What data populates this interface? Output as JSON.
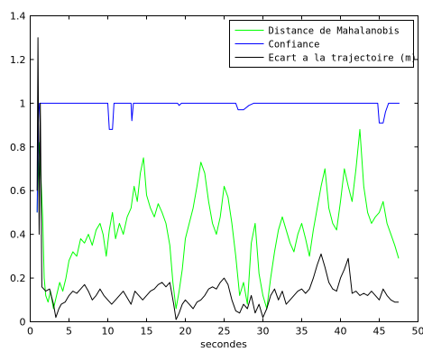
{
  "chart_data": {
    "type": "line",
    "title": "",
    "xlabel": "secondes",
    "ylabel": "",
    "xlim": [
      0,
      50
    ],
    "ylim": [
      0,
      1.4
    ],
    "x_ticks": [
      0,
      5,
      10,
      15,
      20,
      25,
      30,
      35,
      40,
      45,
      50
    ],
    "x_tick_labels": [
      "0",
      "5",
      "10",
      "15",
      "20",
      "25",
      "30",
      "35",
      "40",
      "45",
      "50"
    ],
    "y_ticks": [
      0,
      0.2,
      0.4,
      0.6,
      0.8,
      1,
      1.2,
      1.4
    ],
    "y_tick_labels": [
      "0",
      "0.2",
      "0.4",
      "0.6",
      "0.8",
      "1",
      "1.2",
      "1.4"
    ],
    "grid": false,
    "legend_position": "top-right",
    "series": [
      {
        "name": "Distance de Mahalanobis",
        "color": "#00ff00",
        "points": [
          [
            0.9,
            0.5
          ],
          [
            1.0,
            0.7
          ],
          [
            1.2,
            0.82
          ],
          [
            1.4,
            0.65
          ],
          [
            1.6,
            0.48
          ],
          [
            1.8,
            0.2
          ],
          [
            2.0,
            0.12
          ],
          [
            2.3,
            0.09
          ],
          [
            2.6,
            0.14
          ],
          [
            3.0,
            0.06
          ],
          [
            3.4,
            0.12
          ],
          [
            3.8,
            0.18
          ],
          [
            4.2,
            0.14
          ],
          [
            4.6,
            0.2
          ],
          [
            5.0,
            0.28
          ],
          [
            5.5,
            0.32
          ],
          [
            6.0,
            0.3
          ],
          [
            6.5,
            0.38
          ],
          [
            7.0,
            0.36
          ],
          [
            7.5,
            0.4
          ],
          [
            8.0,
            0.35
          ],
          [
            8.5,
            0.42
          ],
          [
            9.0,
            0.45
          ],
          [
            9.4,
            0.4
          ],
          [
            9.8,
            0.3
          ],
          [
            10.2,
            0.42
          ],
          [
            10.6,
            0.5
          ],
          [
            11.0,
            0.38
          ],
          [
            11.5,
            0.45
          ],
          [
            12.0,
            0.4
          ],
          [
            12.5,
            0.48
          ],
          [
            13.0,
            0.52
          ],
          [
            13.4,
            0.62
          ],
          [
            13.8,
            0.55
          ],
          [
            14.2,
            0.68
          ],
          [
            14.6,
            0.75
          ],
          [
            15.0,
            0.58
          ],
          [
            15.5,
            0.52
          ],
          [
            16.0,
            0.48
          ],
          [
            16.5,
            0.54
          ],
          [
            17.0,
            0.5
          ],
          [
            17.5,
            0.45
          ],
          [
            18.0,
            0.35
          ],
          [
            18.4,
            0.18
          ],
          [
            18.8,
            0.06
          ],
          [
            19.2,
            0.14
          ],
          [
            19.6,
            0.24
          ],
          [
            20.0,
            0.38
          ],
          [
            20.5,
            0.45
          ],
          [
            21.0,
            0.52
          ],
          [
            21.5,
            0.62
          ],
          [
            22.0,
            0.73
          ],
          [
            22.5,
            0.68
          ],
          [
            23.0,
            0.55
          ],
          [
            23.5,
            0.45
          ],
          [
            24.0,
            0.4
          ],
          [
            24.5,
            0.48
          ],
          [
            25.0,
            0.62
          ],
          [
            25.5,
            0.57
          ],
          [
            26.0,
            0.45
          ],
          [
            26.5,
            0.3
          ],
          [
            27.0,
            0.12
          ],
          [
            27.5,
            0.18
          ],
          [
            28.0,
            0.08
          ],
          [
            28.5,
            0.36
          ],
          [
            29.0,
            0.45
          ],
          [
            29.5,
            0.22
          ],
          [
            30.0,
            0.12
          ],
          [
            30.5,
            0.06
          ],
          [
            31.0,
            0.2
          ],
          [
            31.5,
            0.32
          ],
          [
            32.0,
            0.42
          ],
          [
            32.5,
            0.48
          ],
          [
            33.0,
            0.42
          ],
          [
            33.5,
            0.36
          ],
          [
            34.0,
            0.32
          ],
          [
            34.5,
            0.4
          ],
          [
            35.0,
            0.45
          ],
          [
            35.5,
            0.38
          ],
          [
            36.0,
            0.3
          ],
          [
            36.5,
            0.42
          ],
          [
            37.0,
            0.52
          ],
          [
            37.5,
            0.62
          ],
          [
            38.0,
            0.7
          ],
          [
            38.5,
            0.52
          ],
          [
            39.0,
            0.45
          ],
          [
            39.5,
            0.42
          ],
          [
            40.0,
            0.55
          ],
          [
            40.5,
            0.7
          ],
          [
            41.0,
            0.62
          ],
          [
            41.5,
            0.55
          ],
          [
            42.0,
            0.7
          ],
          [
            42.5,
            0.88
          ],
          [
            43.0,
            0.62
          ],
          [
            43.5,
            0.5
          ],
          [
            44.0,
            0.45
          ],
          [
            44.5,
            0.48
          ],
          [
            45.0,
            0.5
          ],
          [
            45.5,
            0.55
          ],
          [
            46.0,
            0.45
          ],
          [
            46.5,
            0.4
          ],
          [
            47.0,
            0.35
          ],
          [
            47.5,
            0.29
          ]
        ]
      },
      {
        "name": "Confiance",
        "color": "#0000ff",
        "points": [
          [
            0.9,
            0.5
          ],
          [
            1.0,
            0.88
          ],
          [
            1.2,
            1.0
          ],
          [
            10.0,
            1.0
          ],
          [
            10.2,
            0.88
          ],
          [
            10.6,
            0.88
          ],
          [
            10.8,
            1.0
          ],
          [
            13.0,
            1.0
          ],
          [
            13.1,
            0.92
          ],
          [
            13.3,
            1.0
          ],
          [
            19.0,
            1.0
          ],
          [
            19.2,
            0.99
          ],
          [
            19.5,
            1.0
          ],
          [
            26.5,
            1.0
          ],
          [
            26.8,
            0.97
          ],
          [
            27.5,
            0.97
          ],
          [
            28.2,
            0.99
          ],
          [
            28.8,
            1.0
          ],
          [
            44.8,
            1.0
          ],
          [
            45.0,
            0.91
          ],
          [
            45.5,
            0.91
          ],
          [
            45.8,
            0.96
          ],
          [
            46.2,
            1.0
          ],
          [
            47.6,
            1.0
          ]
        ]
      },
      {
        "name": "Ecart a la trajectoire (m)",
        "color": "#000000",
        "points": [
          [
            0.9,
            0.6
          ],
          [
            1.0,
            1.3
          ],
          [
            1.15,
            0.4
          ],
          [
            1.3,
            1.0
          ],
          [
            1.5,
            0.16
          ],
          [
            2.0,
            0.14
          ],
          [
            2.5,
            0.15
          ],
          [
            3.0,
            0.08
          ],
          [
            3.3,
            0.02
          ],
          [
            3.7,
            0.06
          ],
          [
            4.0,
            0.08
          ],
          [
            4.5,
            0.09
          ],
          [
            5.0,
            0.12
          ],
          [
            5.5,
            0.14
          ],
          [
            6.0,
            0.13
          ],
          [
            6.5,
            0.15
          ],
          [
            7.0,
            0.17
          ],
          [
            7.5,
            0.14
          ],
          [
            8.0,
            0.1
          ],
          [
            8.5,
            0.12
          ],
          [
            9.0,
            0.15
          ],
          [
            9.5,
            0.12
          ],
          [
            10.0,
            0.1
          ],
          [
            10.5,
            0.08
          ],
          [
            11.0,
            0.1
          ],
          [
            11.5,
            0.12
          ],
          [
            12.0,
            0.14
          ],
          [
            12.5,
            0.11
          ],
          [
            13.0,
            0.08
          ],
          [
            13.5,
            0.14
          ],
          [
            14.0,
            0.12
          ],
          [
            14.5,
            0.1
          ],
          [
            15.0,
            0.12
          ],
          [
            15.5,
            0.14
          ],
          [
            16.0,
            0.15
          ],
          [
            16.5,
            0.17
          ],
          [
            17.0,
            0.18
          ],
          [
            17.5,
            0.16
          ],
          [
            18.0,
            0.18
          ],
          [
            18.5,
            0.08
          ],
          [
            18.8,
            0.01
          ],
          [
            19.2,
            0.04
          ],
          [
            19.6,
            0.08
          ],
          [
            20.0,
            0.1
          ],
          [
            20.5,
            0.08
          ],
          [
            21.0,
            0.06
          ],
          [
            21.5,
            0.09
          ],
          [
            22.0,
            0.1
          ],
          [
            22.5,
            0.12
          ],
          [
            23.0,
            0.15
          ],
          [
            23.5,
            0.16
          ],
          [
            24.0,
            0.15
          ],
          [
            24.5,
            0.18
          ],
          [
            25.0,
            0.2
          ],
          [
            25.5,
            0.17
          ],
          [
            26.0,
            0.1
          ],
          [
            26.5,
            0.05
          ],
          [
            27.0,
            0.04
          ],
          [
            27.5,
            0.08
          ],
          [
            28.0,
            0.06
          ],
          [
            28.5,
            0.12
          ],
          [
            29.0,
            0.04
          ],
          [
            29.5,
            0.08
          ],
          [
            30.0,
            0.02
          ],
          [
            30.5,
            0.06
          ],
          [
            31.0,
            0.12
          ],
          [
            31.5,
            0.15
          ],
          [
            32.0,
            0.1
          ],
          [
            32.5,
            0.14
          ],
          [
            33.0,
            0.08
          ],
          [
            33.5,
            0.1
          ],
          [
            34.0,
            0.12
          ],
          [
            34.5,
            0.14
          ],
          [
            35.0,
            0.15
          ],
          [
            35.5,
            0.13
          ],
          [
            36.0,
            0.15
          ],
          [
            36.5,
            0.2
          ],
          [
            37.0,
            0.26
          ],
          [
            37.5,
            0.31
          ],
          [
            38.0,
            0.25
          ],
          [
            38.5,
            0.18
          ],
          [
            39.0,
            0.15
          ],
          [
            39.5,
            0.14
          ],
          [
            40.0,
            0.2
          ],
          [
            40.5,
            0.24
          ],
          [
            41.0,
            0.29
          ],
          [
            41.5,
            0.13
          ],
          [
            42.0,
            0.14
          ],
          [
            42.5,
            0.12
          ],
          [
            43.0,
            0.13
          ],
          [
            43.5,
            0.12
          ],
          [
            44.0,
            0.14
          ],
          [
            44.5,
            0.12
          ],
          [
            45.0,
            0.1
          ],
          [
            45.5,
            0.15
          ],
          [
            46.0,
            0.12
          ],
          [
            46.5,
            0.1
          ],
          [
            47.0,
            0.09
          ],
          [
            47.5,
            0.09
          ]
        ]
      }
    ]
  }
}
